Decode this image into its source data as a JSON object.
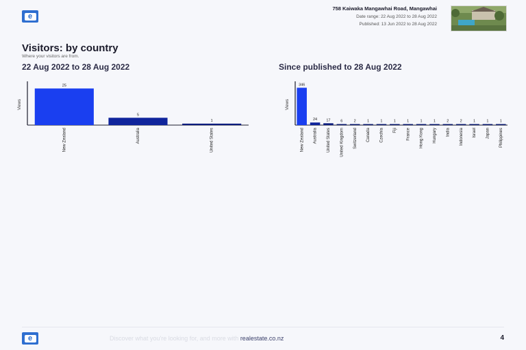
{
  "header": {
    "address": "758 Kaiwaka Mangawhai Road, Mangawhai",
    "date_range": "Date range: 22 Aug 2022 to 28 Aug 2022",
    "published": "Published: 13 Jun 2022 to 28 Aug 2022"
  },
  "section": {
    "title": "Visitors: by country",
    "subtitle": "Where your visitors are from."
  },
  "chart_data": [
    {
      "type": "bar",
      "title": "22 Aug 2022 to 28 Aug 2022",
      "ylabel": "Views",
      "categories": [
        "New Zealand",
        "Australia",
        "United States"
      ],
      "values": [
        25,
        5,
        1
      ],
      "colors": [
        "#1a3ff0",
        "#10259c",
        "#0c1c7e"
      ],
      "ylim": [
        0,
        28
      ],
      "grid": false
    },
    {
      "type": "bar",
      "title": "Since published to 28 Aug 2022",
      "ylabel": "Views",
      "categories": [
        "New Zealand",
        "Australia",
        "United States",
        "United Kingdom",
        "Switzerland",
        "Canada",
        "Czechia",
        "Fiji",
        "France",
        "Hong Kong",
        "Hungary",
        "India",
        "Indonesia",
        "Israel",
        "Japan",
        "Philippines"
      ],
      "values": [
        346,
        24,
        17,
        6,
        2,
        1,
        1,
        1,
        1,
        1,
        1,
        2,
        2,
        1,
        1,
        1
      ],
      "colors": [
        "#1a3ff0",
        "#10259c",
        "#0c1c7e",
        "#0a1a6e",
        "#0a1a6e",
        "#0a1a6e",
        "#0a1a6e",
        "#0a1a6e",
        "#0a1a6e",
        "#0a1a6e",
        "#0a1a6e",
        "#0a1a6e",
        "#0a1a6e",
        "#0a1a6e",
        "#0a1a6e",
        "#0a1a6e"
      ],
      "ylim": [
        0,
        380
      ],
      "grid": false
    }
  ],
  "footer": {
    "text": "Discover what you're looking for, and more with ",
    "link": "realestate.co.nz",
    "page_number": "4"
  },
  "brand": {
    "logo_glyph": "e",
    "accent_color": "#2f6fd0"
  },
  "icons": {
    "logo": "realestate-logo-icon",
    "photo": "property-photo-thumbnail"
  }
}
